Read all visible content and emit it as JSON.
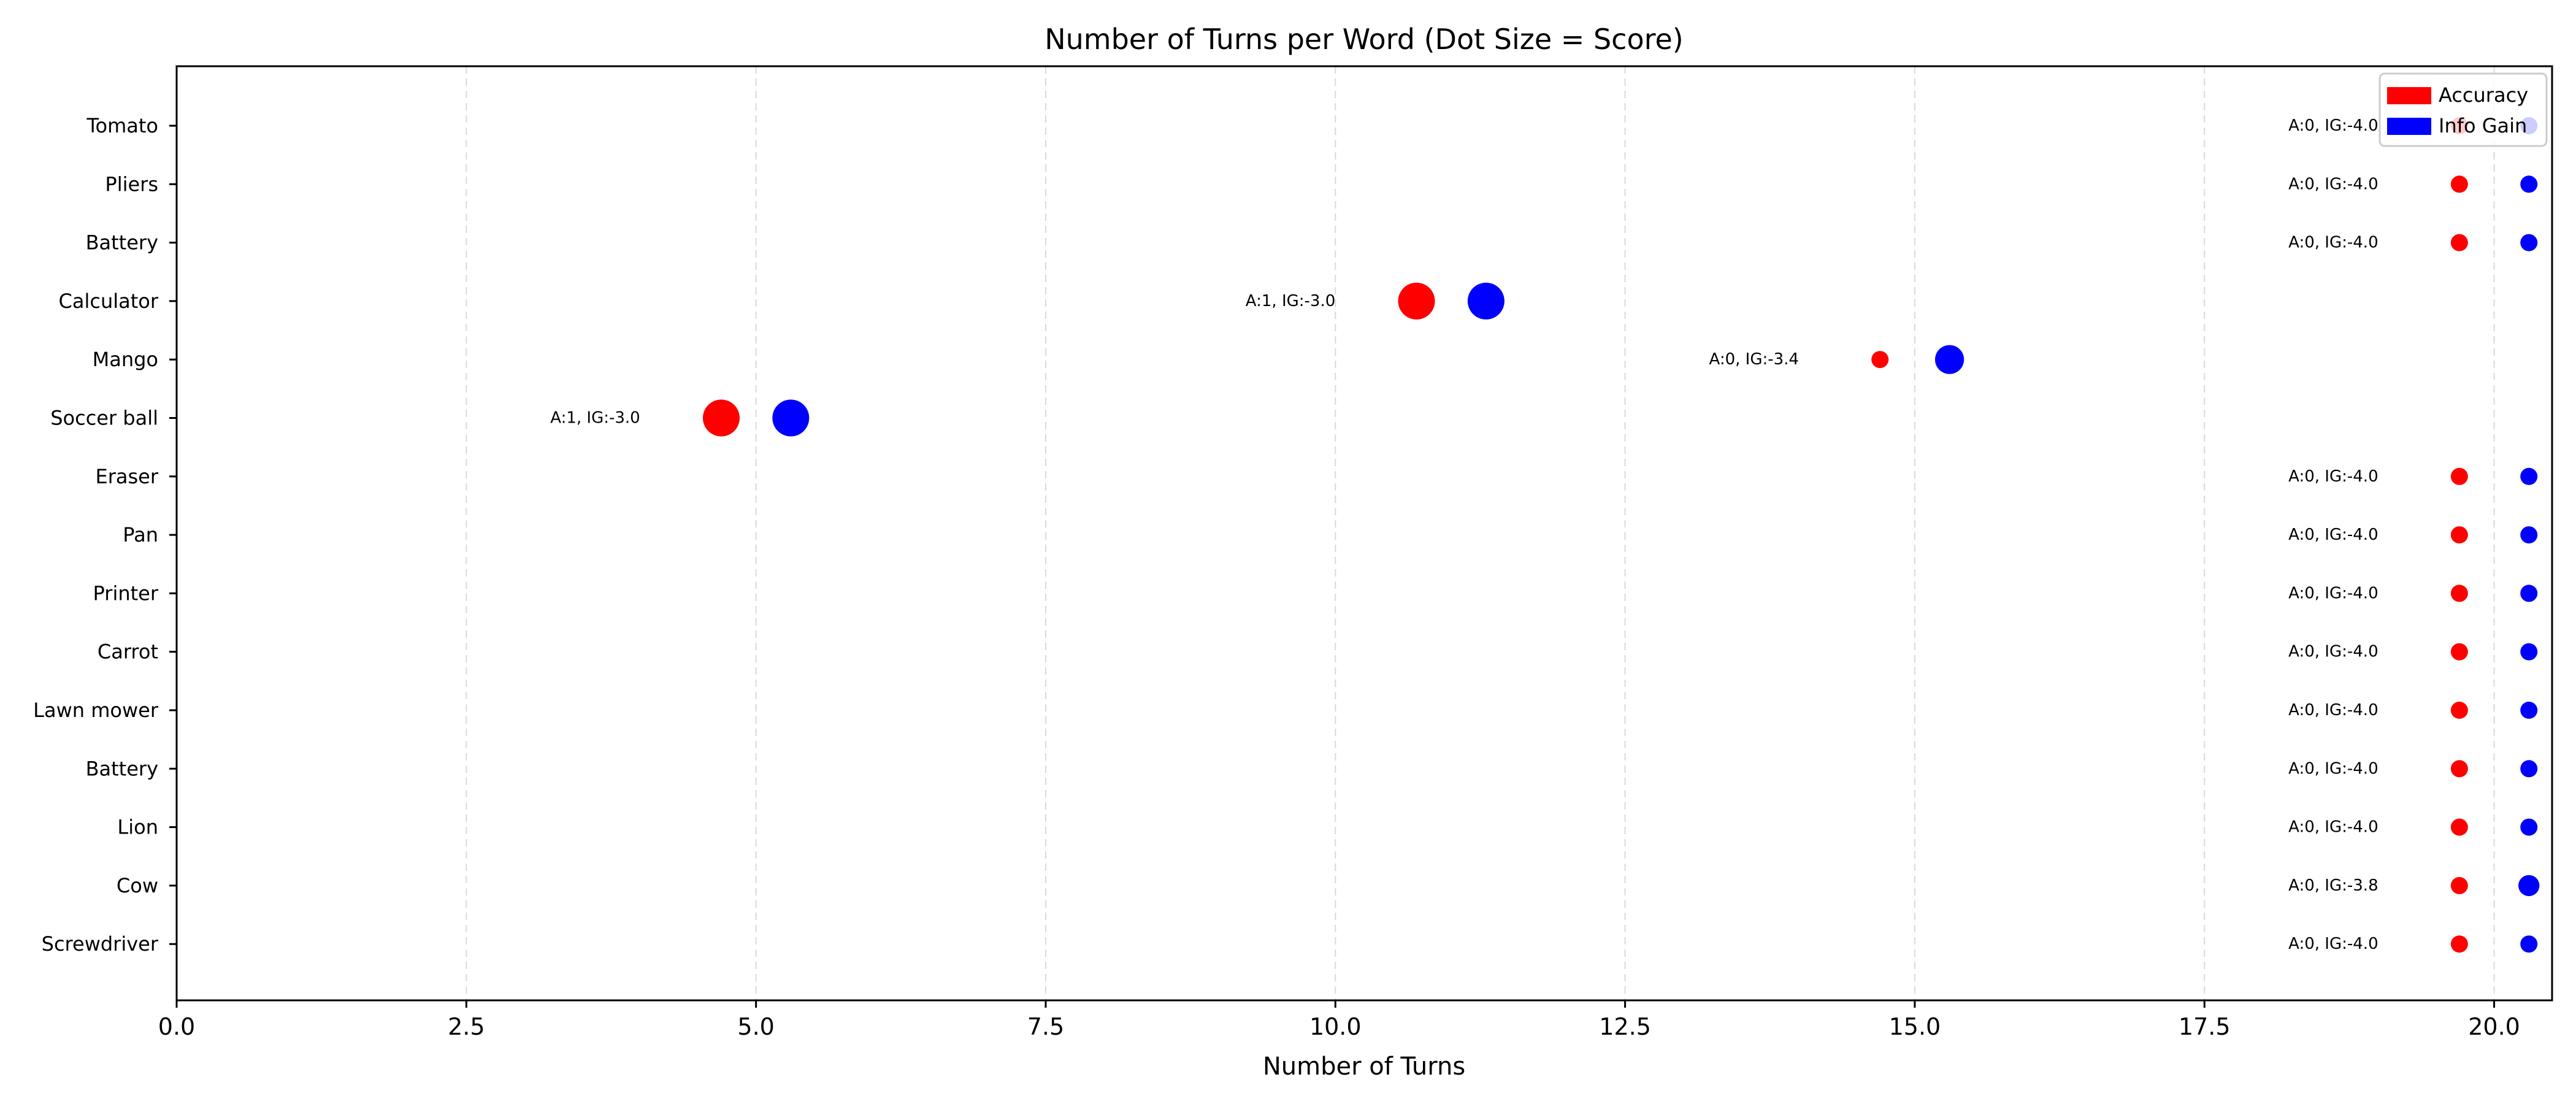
{
  "chart_data": {
    "type": "scatter",
    "title": "Number of Turns per Word (Dot Size = Score)",
    "xlabel": "Number of Turns",
    "ylabel": "",
    "xlim": [
      0,
      20.5
    ],
    "xticks": [
      0.0,
      2.5,
      5.0,
      7.5,
      10.0,
      12.5,
      15.0,
      17.5,
      20.0
    ],
    "xtick_labels": [
      "0.0",
      "2.5",
      "5.0",
      "7.5",
      "10.0",
      "12.5",
      "15.0",
      "17.5",
      "20.0"
    ],
    "grid": "x-dashed",
    "legend_position": "top-right",
    "categories": [
      "Tomato",
      "Pliers",
      "Battery",
      "Calculator",
      "Mango",
      "Soccer ball",
      "Eraser",
      "Pan",
      "Printer",
      "Carrot",
      "Lawn mower",
      "Battery",
      "Lion",
      "Cow",
      "Screwdriver"
    ],
    "turns": [
      20,
      20,
      20,
      11,
      15,
      5,
      20,
      20,
      20,
      20,
      20,
      20,
      20,
      20,
      20
    ],
    "series": [
      {
        "name": "Accuracy",
        "color": "#ff0000",
        "x_offset": -0.3,
        "values": [
          0,
          0,
          0,
          1,
          0,
          1,
          0,
          0,
          0,
          0,
          0,
          0,
          0,
          0,
          0
        ]
      },
      {
        "name": "Info Gain",
        "color": "#0000ff",
        "x_offset": 0.3,
        "values": [
          -4.0,
          -4.0,
          -4.0,
          -3.0,
          -3.4,
          -3.0,
          -4.0,
          -4.0,
          -4.0,
          -4.0,
          -4.0,
          -4.0,
          -4.0,
          -3.8,
          -4.0
        ]
      }
    ],
    "annotations": [
      "A:0, IG:-4.0",
      "A:0, IG:-4.0",
      "A:0, IG:-4.0",
      "A:1, IG:-3.0",
      "A:0, IG:-3.4",
      "A:1, IG:-3.0",
      "A:0, IG:-4.0",
      "A:0, IG:-4.0",
      "A:0, IG:-4.0",
      "A:0, IG:-4.0",
      "A:0, IG:-4.0",
      "A:0, IG:-4.0",
      "A:0, IG:-4.0",
      "A:0, IG:-3.8",
      "A:0, IG:-4.0"
    ]
  }
}
